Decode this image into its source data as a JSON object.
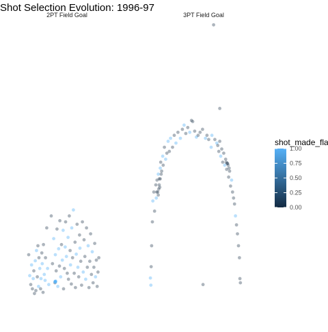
{
  "chart_data": {
    "type": "scatter",
    "title": "Shot Selection Evolution: 1996-97",
    "xlabel": "",
    "ylabel": "",
    "grid": false,
    "legend_position": "right",
    "color_scale": {
      "variable": "shot_made_flag",
      "low_color": "#132B43",
      "high_color": "#56B1F7",
      "ticks": [
        "0.00",
        "0.25",
        "0.50",
        "0.75",
        "1.00"
      ],
      "range": [
        0,
        1
      ]
    },
    "x_range": [
      -250,
      250
    ],
    "y_range": [
      -50,
      420
    ],
    "panels": [
      {
        "label": "2PT Field Goal",
        "points": [
          [
            -210,
            45,
            0
          ],
          [
            -205,
            10,
            1
          ],
          [
            -200,
            -5,
            0
          ],
          [
            -196,
            28,
            1
          ],
          [
            -192,
            -12,
            0
          ],
          [
            -188,
            5,
            1
          ],
          [
            -185,
            18,
            0
          ],
          [
            -182,
            -20,
            0
          ],
          [
            -178,
            35,
            1
          ],
          [
            -175,
            -15,
            0
          ],
          [
            -172,
            52,
            1
          ],
          [
            -168,
            8,
            0
          ],
          [
            -165,
            60,
            0
          ],
          [
            -162,
            -8,
            1
          ],
          [
            -160,
            40,
            0
          ],
          [
            -156,
            22,
            1
          ],
          [
            -152,
            -12,
            0
          ],
          [
            -150,
            5,
            1
          ],
          [
            -146,
            48,
            0
          ],
          [
            -144,
            30,
            1
          ],
          [
            -140,
            -18,
            0
          ],
          [
            -138,
            62,
            0
          ],
          [
            -134,
            12,
            1
          ],
          [
            -130,
            2,
            1
          ],
          [
            -128,
            40,
            0
          ],
          [
            -122,
            90,
            0
          ],
          [
            -118,
            22,
            1
          ],
          [
            -112,
            -5,
            1
          ],
          [
            -100,
            110,
            0
          ],
          [
            -94,
            30,
            0
          ],
          [
            -88,
            72,
            1
          ],
          [
            -82,
            -2,
            0
          ],
          [
            -80,
            45,
            1
          ],
          [
            -76,
            18,
            0
          ],
          [
            -72,
            88,
            0
          ],
          [
            -68,
            -8,
            1
          ],
          [
            -64,
            55,
            1
          ],
          [
            -60,
            26,
            0
          ],
          [
            -58,
            102,
            0
          ],
          [
            -54,
            8,
            1
          ],
          [
            -50,
            62,
            0
          ],
          [
            -46,
            36,
            1
          ],
          [
            -42,
            86,
            1
          ],
          [
            -40,
            -12,
            0
          ],
          [
            -36,
            22,
            0
          ],
          [
            -32,
            58,
            1
          ],
          [
            -30,
            100,
            0
          ],
          [
            -26,
            42,
            1
          ],
          [
            -22,
            14,
            0
          ],
          [
            -18,
            74,
            1
          ],
          [
            -16,
            4,
            0
          ],
          [
            -12,
            110,
            0
          ],
          [
            -8,
            52,
            0
          ],
          [
            -6,
            28,
            1
          ],
          [
            -2,
            -4,
            0
          ],
          [
            0,
            90,
            1
          ],
          [
            4,
            40,
            0
          ],
          [
            8,
            120,
            1
          ],
          [
            12,
            14,
            0
          ],
          [
            16,
            66,
            0
          ],
          [
            18,
            -10,
            0
          ],
          [
            22,
            46,
            1
          ],
          [
            26,
            96,
            0
          ],
          [
            30,
            24,
            1
          ],
          [
            34,
            8,
            0
          ],
          [
            38,
            78,
            0
          ],
          [
            40,
            56,
            1
          ],
          [
            44,
            34,
            0
          ],
          [
            48,
            -6,
            0
          ],
          [
            52,
            100,
            0
          ],
          [
            56,
            16,
            1
          ],
          [
            60,
            70,
            0
          ],
          [
            64,
            42,
            0
          ],
          [
            68,
            4,
            1
          ],
          [
            72,
            90,
            0
          ],
          [
            76,
            24,
            0
          ],
          [
            80,
            60,
            1
          ],
          [
            84,
            -10,
            0
          ],
          [
            88,
            34,
            0
          ],
          [
            92,
            80,
            0
          ],
          [
            96,
            12,
            0
          ],
          [
            100,
            50,
            1
          ],
          [
            104,
            -2,
            0
          ],
          [
            108,
            24,
            0
          ],
          [
            112,
            64,
            0
          ],
          [
            116,
            8,
            1
          ],
          [
            120,
            36,
            0
          ],
          [
            124,
            -8,
            0
          ],
          [
            128,
            16,
            0
          ],
          [
            132,
            40,
            0
          ],
          [
            -80,
            0,
            1
          ],
          [
            -81,
            0,
            1
          ],
          [
            -79,
            1,
            1
          ],
          [
            -80,
            -1,
            1
          ],
          [
            -82,
            0,
            1
          ],
          [
            -78,
            0,
            1
          ]
        ]
      },
      {
        "label": "3PT Field Goal",
        "points": [
          [
            -222,
            6,
            1
          ],
          [
            -220,
            -6,
            1
          ],
          [
            -219,
            25,
            0
          ],
          [
            -217,
            60,
            0
          ],
          [
            -214,
            100,
            0
          ],
          [
            -212,
            135,
            1
          ],
          [
            -208,
            150,
            0
          ],
          [
            -205,
            118,
            0
          ],
          [
            -200,
            162,
            0
          ],
          [
            -198,
            140,
            1
          ],
          [
            -195,
            170,
            0
          ],
          [
            -192,
            150,
            0
          ],
          [
            -190,
            180,
            1
          ],
          [
            -188,
            155,
            0
          ],
          [
            -186,
            172,
            0
          ],
          [
            -184,
            158,
            0
          ],
          [
            -182,
            190,
            1
          ],
          [
            -180,
            200,
            0
          ],
          [
            -176,
            185,
            0
          ],
          [
            -172,
            210,
            1
          ],
          [
            -170,
            195,
            0
          ],
          [
            -165,
            225,
            0
          ],
          [
            -160,
            205,
            1
          ],
          [
            -155,
            215,
            0
          ],
          [
            -150,
            235,
            1
          ],
          [
            -145,
            218,
            0
          ],
          [
            -140,
            240,
            1
          ],
          [
            -132,
            225,
            0
          ],
          [
            -125,
            245,
            0
          ],
          [
            -118,
            232,
            1
          ],
          [
            -110,
            250,
            0
          ],
          [
            -100,
            240,
            1
          ],
          [
            -92,
            255,
            0
          ],
          [
            -85,
            262,
            1
          ],
          [
            -78,
            248,
            0
          ],
          [
            -70,
            258,
            0
          ],
          [
            -62,
            250,
            1
          ],
          [
            -55,
            270,
            0
          ],
          [
            -50,
            268,
            0
          ],
          [
            -42,
            252,
            0
          ],
          [
            -35,
            242,
            1
          ],
          [
            -28,
            245,
            0
          ],
          [
            -20,
            250,
            0
          ],
          [
            -10,
            255,
            0
          ],
          [
            2,
            240,
            1
          ],
          [
            8,
            245,
            0
          ],
          [
            15,
            238,
            0
          ],
          [
            25,
            225,
            1
          ],
          [
            35,
            430,
            0
          ],
          [
            -8,
            -5,
            0
          ],
          [
            28,
            245,
            1
          ],
          [
            40,
            238,
            0
          ],
          [
            48,
            232,
            1
          ],
          [
            52,
            228,
            0
          ],
          [
            56,
            218,
            0
          ],
          [
            60,
            235,
            0
          ],
          [
            64,
            210,
            1
          ],
          [
            68,
            222,
            0
          ],
          [
            72,
            200,
            0
          ],
          [
            76,
            215,
            0
          ],
          [
            80,
            195,
            1
          ],
          [
            84,
            205,
            0
          ],
          [
            88,
            188,
            0
          ],
          [
            92,
            198,
            0
          ],
          [
            96,
            175,
            0
          ],
          [
            100,
            185,
            0
          ],
          [
            104,
            160,
            0
          ],
          [
            108,
            170,
            1
          ],
          [
            112,
            150,
            0
          ],
          [
            116,
            140,
            0
          ],
          [
            120,
            130,
            0
          ],
          [
            124,
            110,
            1
          ],
          [
            128,
            95,
            0
          ],
          [
            132,
            80,
            0
          ],
          [
            136,
            60,
            0
          ],
          [
            140,
            40,
            0
          ],
          [
            142,
            5,
            0
          ],
          [
            144,
            -2,
            0
          ],
          [
            60,
            290,
            0
          ],
          [
            90,
            198,
            0
          ],
          [
            86,
            200,
            0
          ],
          [
            94,
            195,
            0
          ],
          [
            -182,
            172,
            0
          ],
          [
            -178,
            180,
            0
          ],
          [
            -196,
            150,
            0
          ],
          [
            -190,
            145,
            0
          ],
          [
            -186,
            162,
            0
          ],
          [
            98,
            190,
            0
          ]
        ]
      }
    ]
  }
}
